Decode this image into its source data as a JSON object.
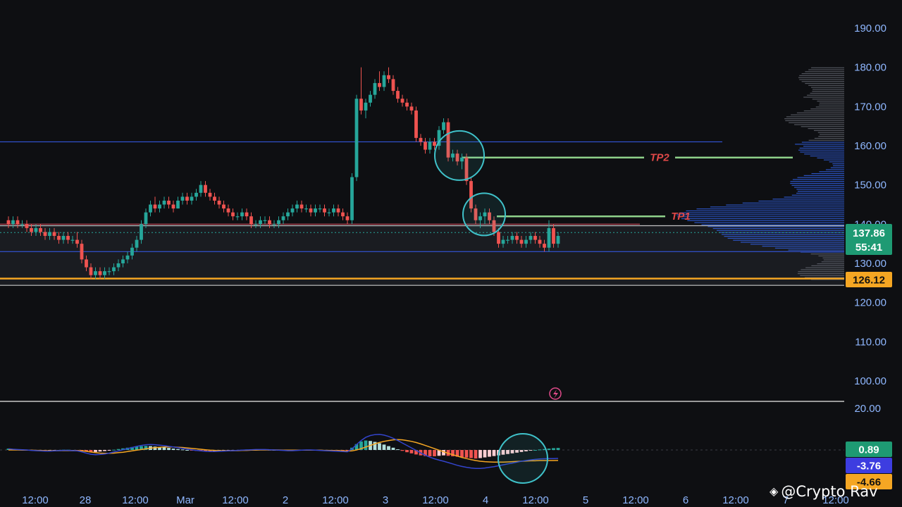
{
  "chart_data": [
    {
      "type": "candlestick",
      "ylim": [
        92,
        193
      ],
      "y_ticks": [
        "190.00",
        "180.00",
        "170.00",
        "160.00",
        "150.00",
        "140.00",
        "130.00",
        "120.00",
        "110.00",
        "100.00"
      ],
      "x_ticks": [
        "12:00",
        "28",
        "12:00",
        "Mar",
        "12:00",
        "2",
        "12:00",
        "3",
        "12:00",
        "4",
        "12:00",
        "5",
        "12:00",
        "6",
        "12:00",
        "7",
        "12:00"
      ],
      "last_price": "137.86",
      "countdown": "55:41",
      "support_label": "126.12",
      "levels": [
        {
          "price": 161.0,
          "color": "#3355d9"
        },
        {
          "price": 140.0,
          "color": "#d04b5a"
        },
        {
          "price": 139.6,
          "color": "#c8c8c8"
        },
        {
          "price": 133.0,
          "color": "#3355d9"
        },
        {
          "price": 126.12,
          "color": "#f5a623"
        },
        {
          "price": 124.4,
          "color": "#c8c8c8"
        }
      ],
      "targets": [
        {
          "label": "TP2",
          "price": 157.0
        },
        {
          "label": "TP1",
          "price": 142.0
        }
      ],
      "candles": [
        [
          141,
          142,
          139,
          140
        ],
        [
          140,
          142,
          139,
          141
        ],
        [
          141,
          142,
          139,
          140
        ],
        [
          140,
          141,
          139,
          140
        ],
        [
          140,
          141,
          138,
          139
        ],
        [
          139,
          140,
          137,
          138
        ],
        [
          138,
          140,
          137,
          139
        ],
        [
          139,
          140,
          137,
          138
        ],
        [
          138,
          139,
          136,
          137
        ],
        [
          137,
          139,
          136,
          138
        ],
        [
          138,
          139,
          136,
          137
        ],
        [
          137,
          138,
          135,
          136
        ],
        [
          136,
          138,
          135,
          137
        ],
        [
          137,
          138,
          135,
          136
        ],
        [
          136,
          137,
          135,
          136
        ],
        [
          136,
          138,
          134,
          135
        ],
        [
          135,
          136,
          130,
          131
        ],
        [
          131,
          132,
          128,
          129
        ],
        [
          129,
          130,
          126,
          127
        ],
        [
          127,
          129,
          126,
          128
        ],
        [
          128,
          129,
          126,
          127
        ],
        [
          127,
          129,
          126,
          128
        ],
        [
          128,
          129,
          127,
          128
        ],
        [
          128,
          130,
          127,
          129
        ],
        [
          129,
          131,
          128,
          130
        ],
        [
          130,
          132,
          129,
          131
        ],
        [
          131,
          133,
          130,
          132
        ],
        [
          132,
          135,
          131,
          134
        ],
        [
          134,
          137,
          133,
          136
        ],
        [
          136,
          141,
          135,
          140
        ],
        [
          140,
          144,
          139,
          143
        ],
        [
          143,
          146,
          142,
          145
        ],
        [
          145,
          147,
          143,
          144
        ],
        [
          144,
          146,
          143,
          145
        ],
        [
          145,
          147,
          144,
          146
        ],
        [
          146,
          147,
          144,
          145
        ],
        [
          145,
          146,
          143,
          144
        ],
        [
          144,
          147,
          144,
          146
        ],
        [
          146,
          148,
          145,
          147
        ],
        [
          147,
          148,
          145,
          146
        ],
        [
          146,
          148,
          145,
          147
        ],
        [
          147,
          149,
          146,
          148
        ],
        [
          148,
          151,
          147,
          150
        ],
        [
          150,
          151,
          147,
          148
        ],
        [
          148,
          149,
          146,
          147
        ],
        [
          147,
          148,
          145,
          146
        ],
        [
          146,
          147,
          144,
          145
        ],
        [
          145,
          146,
          143,
          144
        ],
        [
          144,
          145,
          142,
          143
        ],
        [
          143,
          144,
          141,
          142
        ],
        [
          142,
          143,
          141,
          142
        ],
        [
          142,
          144,
          141,
          143
        ],
        [
          143,
          144,
          141,
          142
        ],
        [
          142,
          143,
          139,
          140
        ],
        [
          140,
          141,
          139,
          140
        ],
        [
          140,
          142,
          139,
          141
        ],
        [
          141,
          142,
          140,
          141
        ],
        [
          141,
          142,
          139,
          140
        ],
        [
          140,
          141,
          139,
          140
        ],
        [
          140,
          142,
          139,
          141
        ],
        [
          141,
          143,
          140,
          142
        ],
        [
          142,
          144,
          141,
          143
        ],
        [
          143,
          145,
          142,
          144
        ],
        [
          144,
          146,
          143,
          145
        ],
        [
          145,
          146,
          143,
          144
        ],
        [
          144,
          145,
          143,
          144
        ],
        [
          144,
          145,
          142,
          143
        ],
        [
          143,
          145,
          142,
          144
        ],
        [
          144,
          145,
          143,
          144
        ],
        [
          144,
          145,
          142,
          143
        ],
        [
          143,
          144,
          142,
          143
        ],
        [
          143,
          145,
          142,
          144
        ],
        [
          144,
          145,
          142,
          143
        ],
        [
          143,
          144,
          141,
          142
        ],
        [
          142,
          143,
          140,
          141
        ],
        [
          141,
          153,
          140,
          152
        ],
        [
          152,
          173,
          151,
          172
        ],
        [
          172,
          180,
          168,
          169
        ],
        [
          169,
          172,
          167,
          171
        ],
        [
          171,
          174,
          170,
          173
        ],
        [
          173,
          177,
          172,
          176
        ],
        [
          176,
          179,
          174,
          175
        ],
        [
          175,
          179,
          174,
          178
        ],
        [
          178,
          180,
          176,
          177
        ],
        [
          177,
          178,
          173,
          174
        ],
        [
          174,
          175,
          171,
          172
        ],
        [
          172,
          173,
          170,
          171
        ],
        [
          171,
          172,
          169,
          170
        ],
        [
          170,
          171,
          168,
          169
        ],
        [
          169,
          170,
          161,
          162
        ],
        [
          162,
          163,
          160,
          161
        ],
        [
          161,
          162,
          158,
          159
        ],
        [
          159,
          162,
          158,
          161
        ],
        [
          161,
          162,
          159,
          160
        ],
        [
          160,
          165,
          159,
          164
        ],
        [
          164,
          167,
          163,
          166
        ],
        [
          166,
          167,
          156,
          157
        ],
        [
          157,
          159,
          156,
          158
        ],
        [
          158,
          159,
          155,
          156
        ],
        [
          156,
          158,
          154,
          157
        ],
        [
          157,
          158,
          150,
          151
        ],
        [
          151,
          152,
          143,
          144
        ],
        [
          144,
          145,
          140,
          141
        ],
        [
          141,
          143,
          139,
          142
        ],
        [
          142,
          144,
          140,
          143
        ],
        [
          143,
          144,
          140,
          141
        ],
        [
          141,
          142,
          137,
          138
        ],
        [
          138,
          139,
          134,
          135
        ],
        [
          135,
          137,
          134,
          136
        ],
        [
          136,
          137,
          135,
          136
        ],
        [
          136,
          138,
          135,
          137
        ],
        [
          137,
          138,
          135,
          136
        ],
        [
          136,
          137,
          134,
          135
        ],
        [
          135,
          137,
          134,
          136
        ],
        [
          136,
          138,
          135,
          137
        ],
        [
          137,
          138,
          135,
          136
        ],
        [
          136,
          137,
          134,
          135
        ],
        [
          135,
          136,
          133,
          134
        ],
        [
          134,
          141,
          133,
          139
        ],
        [
          139,
          140,
          134,
          135
        ],
        [
          135,
          138,
          134,
          137
        ]
      ]
    },
    {
      "type": "macd",
      "y_tick": "20.00",
      "labels": {
        "histogram": "0.89",
        "macd": "-3.76",
        "signal": "-4.66"
      },
      "histogram": [
        0.6,
        0.4,
        0.3,
        0.2,
        0.1,
        -0.1,
        -0.2,
        -0.2,
        -0.3,
        -0.2,
        -0.1,
        0.0,
        0.1,
        0.1,
        0.0,
        -0.1,
        -0.4,
        -0.8,
        -1.0,
        -0.9,
        -0.7,
        -0.5,
        -0.2,
        0.1,
        0.4,
        0.7,
        1.0,
        1.3,
        1.5,
        1.7,
        1.8,
        1.7,
        1.5,
        1.3,
        1.1,
        0.9,
        0.6,
        0.4,
        0.2,
        0.0,
        -0.2,
        -0.4,
        -0.5,
        -0.6,
        -0.6,
        -0.5,
        -0.4,
        -0.3,
        -0.2,
        -0.1,
        0.0,
        0.1,
        0.2,
        0.3,
        0.3,
        0.3,
        0.2,
        0.1,
        0.0,
        -0.1,
        -0.2,
        -0.2,
        -0.2,
        -0.1,
        0.0,
        0.1,
        0.1,
        0.0,
        -0.1,
        -0.1,
        -0.2,
        -0.3,
        -0.4,
        -0.5,
        -0.6,
        1.0,
        2.6,
        3.8,
        4.2,
        4.0,
        3.6,
        3.0,
        2.4,
        1.7,
        1.0,
        0.3,
        -0.4,
        -1.0,
        -1.5,
        -2.0,
        -2.4,
        -2.7,
        -2.8,
        -2.8,
        -2.6,
        -2.4,
        -2.6,
        -2.8,
        -3.0,
        -3.2,
        -3.4,
        -3.6,
        -3.8,
        -3.6,
        -3.3,
        -3.0,
        -2.7,
        -2.4,
        -2.1,
        -1.8,
        -1.5,
        -1.2,
        -0.9,
        -0.6,
        -0.3,
        0.0,
        0.2,
        0.4,
        0.6,
        0.8,
        0.89
      ],
      "macd": [
        0.5,
        0.3,
        0.2,
        0.1,
        0.0,
        -0.2,
        -0.3,
        -0.4,
        -0.5,
        -0.5,
        -0.4,
        -0.3,
        -0.2,
        -0.2,
        -0.3,
        -0.4,
        -0.8,
        -1.4,
        -1.9,
        -2.1,
        -2.0,
        -1.8,
        -1.4,
        -0.9,
        -0.4,
        0.1,
        0.6,
        1.1,
        1.6,
        2.0,
        2.3,
        2.4,
        2.3,
        2.1,
        1.9,
        1.6,
        1.3,
        1.0,
        0.7,
        0.4,
        0.1,
        -0.2,
        -0.4,
        -0.6,
        -0.7,
        -0.7,
        -0.6,
        -0.5,
        -0.4,
        -0.3,
        -0.2,
        -0.1,
        0.0,
        0.1,
        0.2,
        0.2,
        0.2,
        0.1,
        0.0,
        -0.1,
        -0.2,
        -0.3,
        -0.3,
        -0.2,
        -0.1,
        0.0,
        0.0,
        -0.1,
        -0.2,
        -0.3,
        -0.4,
        -0.5,
        -0.6,
        -0.7,
        -0.8,
        0.5,
        2.4,
        4.2,
        5.6,
        6.4,
        6.8,
        6.9,
        6.6,
        6.0,
        5.2,
        4.2,
        3.1,
        2.0,
        0.9,
        -0.2,
        -1.3,
        -2.3,
        -3.2,
        -3.9,
        -4.5,
        -5.0,
        -5.6,
        -6.2,
        -6.8,
        -7.3,
        -7.7,
        -8.0,
        -8.2,
        -8.2,
        -8.0,
        -7.7,
        -7.4,
        -7.0,
        -6.6,
        -6.2,
        -5.8,
        -5.4,
        -5.0,
        -4.7,
        -4.4,
        -4.2,
        -4.0,
        -3.9,
        -3.8,
        -3.8,
        -3.76
      ],
      "signal": [
        0.0,
        0.0,
        0.0,
        -0.1,
        -0.1,
        -0.1,
        -0.2,
        -0.2,
        -0.3,
        -0.3,
        -0.3,
        -0.3,
        -0.3,
        -0.3,
        -0.3,
        -0.3,
        -0.4,
        -0.6,
        -0.9,
        -1.2,
        -1.4,
        -1.5,
        -1.5,
        -1.4,
        -1.2,
        -1.0,
        -0.7,
        -0.4,
        -0.1,
        0.2,
        0.5,
        0.8,
        1.0,
        1.2,
        1.3,
        1.3,
        1.3,
        1.2,
        1.1,
        0.9,
        0.7,
        0.5,
        0.3,
        0.1,
        -0.1,
        -0.2,
        -0.3,
        -0.3,
        -0.3,
        -0.3,
        -0.3,
        -0.2,
        -0.2,
        -0.1,
        -0.1,
        0.0,
        0.0,
        0.0,
        0.0,
        0.0,
        -0.1,
        -0.1,
        -0.1,
        -0.1,
        -0.1,
        -0.1,
        -0.1,
        -0.1,
        -0.1,
        -0.2,
        -0.2,
        -0.3,
        -0.3,
        -0.4,
        -0.5,
        -0.4,
        0.0,
        0.6,
        1.3,
        2.0,
        2.7,
        3.3,
        3.8,
        4.2,
        4.5,
        4.6,
        4.5,
        4.2,
        3.8,
        3.3,
        2.7,
        2.0,
        1.3,
        0.6,
        -0.1,
        -0.8,
        -1.5,
        -2.1,
        -2.7,
        -3.3,
        -3.8,
        -4.3,
        -4.7,
        -5.0,
        -5.2,
        -5.3,
        -5.4,
        -5.4,
        -5.4,
        -5.3,
        -5.2,
        -5.1,
        -5.0,
        -4.9,
        -4.8,
        -4.8,
        -4.7,
        -4.7,
        -4.7,
        -4.7,
        -4.66
      ]
    }
  ],
  "watermark": {
    "text": "@Crypto Rav"
  },
  "colors": {
    "up": "#26a69a",
    "down": "#ef5350",
    "tp_line": "#8fd18a",
    "macd_line": "#3344cc",
    "signal_line": "#f5a623",
    "circle": "#3fc1c9"
  }
}
